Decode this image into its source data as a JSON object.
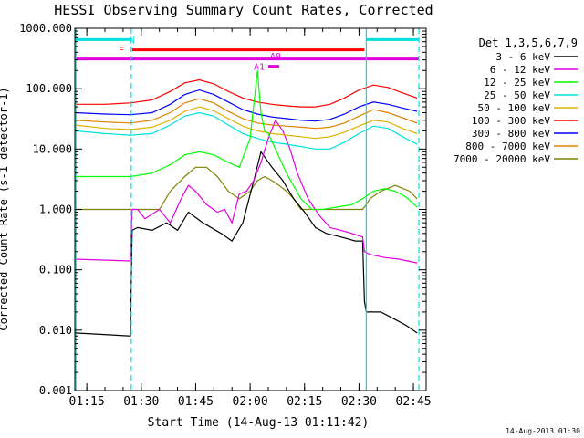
{
  "chart_data": {
    "type": "line",
    "title": "HESSI Observing Summary Count Rates, Corrected",
    "xlabel": "Start Time (14-Aug-13 01:11:42)",
    "ylabel": "Corrected Count Rate (s-1 detector-1)",
    "y_scale": "log",
    "ylim": [
      0.001,
      1000
    ],
    "xlim": [
      "01:11:42",
      "02:48:30"
    ],
    "x_ticks": [
      "01:15",
      "01:30",
      "01:45",
      "02:00",
      "02:15",
      "02:30",
      "02:45"
    ],
    "y_ticks": [
      "0.001",
      "0.010",
      "0.100",
      "1.000",
      "10.000",
      "100.000",
      "1000.000"
    ],
    "legend_title": "Det 1,3,5,6,7,9",
    "legend_position": "right, outside plot",
    "grid": false,
    "series": [
      {
        "name": "3 - 6 keV",
        "color": "#000000",
        "x": [
          "01:11:42",
          "01:27:00",
          "01:27:30",
          "01:29",
          "01:33",
          "01:37",
          "01:40",
          "01:43",
          "01:47",
          "01:52",
          "01:55",
          "01:58",
          "02:01",
          "02:03",
          "02:06",
          "02:09",
          "02:12",
          "02:15",
          "02:18",
          "02:21",
          "02:25",
          "02:29",
          "02:31",
          "02:31:30",
          "02:32",
          "02:36",
          "02:40",
          "02:43",
          "02:46"
        ],
        "y": [
          0.009,
          0.008,
          0.45,
          0.5,
          0.45,
          0.6,
          0.45,
          0.9,
          0.6,
          0.4,
          0.3,
          0.6,
          3.0,
          9.0,
          5.0,
          3.0,
          1.5,
          0.9,
          0.5,
          0.4,
          0.35,
          0.3,
          0.3,
          0.03,
          0.02,
          0.02,
          0.015,
          0.012,
          0.009
        ]
      },
      {
        "name": "6 - 12 keV",
        "color": "#e000e0",
        "x": [
          "01:11:42",
          "01:27:00",
          "01:27:30",
          "01:29",
          "01:31",
          "01:35",
          "01:38",
          "01:41",
          "01:43",
          "01:45",
          "01:48",
          "01:51",
          "01:53",
          "01:55",
          "01:57",
          "01:59",
          "02:01",
          "02:03",
          "02:05",
          "02:07",
          "02:09",
          "02:11",
          "02:13",
          "02:16",
          "02:19",
          "02:22",
          "02:25",
          "02:28",
          "02:31",
          "02:31:30",
          "02:33",
          "02:37",
          "02:41",
          "02:46"
        ],
        "y": [
          0.15,
          0.14,
          1.0,
          1.0,
          0.7,
          1.0,
          0.6,
          1.5,
          2.5,
          2.0,
          1.2,
          0.9,
          1.0,
          0.6,
          1.8,
          2.0,
          3.0,
          6.0,
          15.0,
          30.0,
          20.0,
          10.0,
          4.0,
          1.5,
          0.8,
          0.5,
          0.45,
          0.4,
          0.35,
          0.2,
          0.18,
          0.16,
          0.15,
          0.13
        ]
      },
      {
        "name": "12 - 25 keV",
        "color": "#00ff00",
        "x": [
          "01:11:42",
          "01:20",
          "01:27",
          "01:33",
          "01:38",
          "01:42",
          "01:46",
          "01:50",
          "01:54",
          "01:57",
          "02:00",
          "02:02",
          "02:03",
          "02:04",
          "02:05",
          "02:07",
          "02:10",
          "02:14",
          "02:17",
          "02:20",
          "02:24",
          "02:28",
          "02:31",
          "02:34",
          "02:37",
          "02:40",
          "02:43",
          "02:46"
        ],
        "y": [
          3.5,
          3.5,
          3.5,
          4.0,
          5.5,
          8.0,
          9.0,
          8.0,
          6.0,
          5.0,
          15.0,
          200.0,
          40.0,
          20.0,
          18.0,
          10.0,
          4.0,
          1.5,
          1.0,
          1.0,
          1.1,
          1.2,
          1.5,
          2.0,
          2.2,
          2.0,
          1.6,
          1.1
        ]
      },
      {
        "name": "25 - 50 keV",
        "color": "#00e0e0",
        "x": [
          "01:11:42",
          "01:20",
          "01:27",
          "01:33",
          "01:38",
          "01:42",
          "01:46",
          "01:50",
          "01:54",
          "01:58",
          "02:02",
          "02:06",
          "02:10",
          "02:14",
          "02:18",
          "02:22",
          "02:26",
          "02:30",
          "02:34",
          "02:38",
          "02:42",
          "02:46"
        ],
        "y": [
          20.0,
          18.0,
          17.0,
          18.0,
          25.0,
          35.0,
          40.0,
          35.0,
          25.0,
          18.0,
          15.0,
          13.0,
          12.0,
          11.0,
          10.0,
          10.0,
          13.0,
          18.0,
          24.0,
          22.0,
          16.0,
          12.0
        ]
      },
      {
        "name": "50 - 100 keV",
        "color": "#e0b000",
        "x": [
          "01:11:42",
          "01:20",
          "01:27",
          "01:33",
          "01:38",
          "01:42",
          "01:46",
          "01:50",
          "01:54",
          "01:58",
          "02:02",
          "02:06",
          "02:10",
          "02:14",
          "02:18",
          "02:22",
          "02:26",
          "02:30",
          "02:34",
          "02:38",
          "02:42",
          "02:46"
        ],
        "y": [
          25.0,
          22.0,
          21.0,
          23.0,
          30.0,
          42.0,
          50.0,
          43.0,
          32.0,
          24.0,
          20.0,
          18.0,
          17.0,
          16.0,
          15.0,
          16.0,
          19.0,
          24.0,
          30.0,
          28.0,
          22.0,
          18.0
        ]
      },
      {
        "name": "100 - 300 keV",
        "color": "#ff0000",
        "x": [
          "01:11:42",
          "01:20",
          "01:27",
          "01:33",
          "01:38",
          "01:42",
          "01:46",
          "01:50",
          "01:54",
          "01:58",
          "02:02",
          "02:06",
          "02:10",
          "02:14",
          "02:18",
          "02:22",
          "02:26",
          "02:30",
          "02:34",
          "02:38",
          "02:42",
          "02:46"
        ],
        "y": [
          55.0,
          55.0,
          58.0,
          65.0,
          90.0,
          125.0,
          140.0,
          120.0,
          90.0,
          70.0,
          60.0,
          55.0,
          52.0,
          50.0,
          50.0,
          55.0,
          70.0,
          95.0,
          115.0,
          105.0,
          85.0,
          70.0
        ]
      },
      {
        "name": "300 - 800 keV",
        "color": "#0000ff",
        "x": [
          "01:11:42",
          "01:20",
          "01:27",
          "01:33",
          "01:38",
          "01:42",
          "01:46",
          "01:50",
          "01:54",
          "01:58",
          "02:02",
          "02:06",
          "02:10",
          "02:14",
          "02:18",
          "02:22",
          "02:26",
          "02:30",
          "02:34",
          "02:38",
          "02:42",
          "02:46"
        ],
        "y": [
          40.0,
          38.0,
          37.0,
          40.0,
          55.0,
          80.0,
          95.0,
          80.0,
          60.0,
          45.0,
          38.0,
          34.0,
          32.0,
          30.0,
          29.0,
          31.0,
          38.0,
          50.0,
          60.0,
          55.0,
          48.0,
          42.0
        ]
      },
      {
        "name": "800 - 7000 keV",
        "color": "#e08000",
        "x": [
          "01:11:42",
          "01:20",
          "01:27",
          "01:33",
          "01:38",
          "01:42",
          "01:46",
          "01:50",
          "01:54",
          "01:58",
          "02:02",
          "02:06",
          "02:10",
          "02:14",
          "02:18",
          "02:22",
          "02:26",
          "02:30",
          "02:34",
          "02:38",
          "02:42",
          "02:46"
        ],
        "y": [
          30.0,
          28.0,
          27.0,
          30.0,
          40.0,
          58.0,
          68.0,
          58.0,
          42.0,
          32.0,
          27.0,
          25.0,
          24.0,
          23.0,
          22.0,
          23.0,
          27.0,
          35.0,
          45.0,
          40.0,
          33.0,
          27.0
        ]
      },
      {
        "name": "7000 - 20000 keV",
        "color": "#808000",
        "x": [
          "01:11:42",
          "01:27",
          "01:28",
          "01:35",
          "01:38",
          "01:42",
          "01:45",
          "01:48",
          "01:51",
          "01:54",
          "01:57",
          "02:00",
          "02:02",
          "02:04",
          "02:06",
          "02:08",
          "02:10",
          "02:12",
          "02:14",
          "02:16",
          "02:20",
          "02:25",
          "02:30",
          "02:31",
          "02:32",
          "02:33",
          "02:36",
          "02:40",
          "02:44",
          "02:46"
        ],
        "y": [
          1.0,
          1.0,
          1.0,
          1.0,
          2.0,
          3.5,
          5.0,
          5.0,
          3.5,
          2.0,
          1.5,
          2.0,
          3.0,
          3.5,
          3.0,
          2.5,
          2.0,
          1.5,
          1.0,
          1.0,
          1.0,
          1.0,
          1.0,
          1.0,
          1.2,
          1.5,
          2.0,
          2.5,
          2.0,
          1.5
        ]
      }
    ],
    "annotations": [
      {
        "label": "N",
        "color": "#00e0e0",
        "x_start": "01:11:42",
        "x_end": "01:27:00",
        "y": 650,
        "label_at": "01:27:30"
      },
      {
        "label": "",
        "color": "#00e0e0",
        "x_start": "02:32:00",
        "x_end": "02:46:30",
        "y": 650
      },
      {
        "label": "F",
        "color": "#ff0000",
        "x_start": "01:27:30",
        "x_end": "02:31:30",
        "y": 440,
        "label_at": "01:24:30"
      },
      {
        "label": "",
        "color": "#e000e0",
        "x_start": "01:11:42",
        "x_end": "02:46:30",
        "y": 310
      },
      {
        "label": "A1",
        "color": "#e000e0",
        "x_start": "02:05:00",
        "x_end": "02:08:00",
        "y": 235,
        "label_at": "02:02:30"
      },
      {
        "label": "A0",
        "color": "#e000e0",
        "label_at": "02:07:00",
        "y": 350
      }
    ],
    "vertical_lines": [
      {
        "x": "01:12:00",
        "color": "#00e0e0",
        "style": "solid"
      },
      {
        "x": "01:27:15",
        "color": "#00e0e0",
        "style": "dashed"
      },
      {
        "x": "02:32:00",
        "color": "#00e0e0",
        "style": "solid"
      },
      {
        "x": "02:46:30",
        "color": "#00e0e0",
        "style": "dashed"
      }
    ]
  },
  "footer": {
    "date_stamp": "14-Aug-2013 01:30"
  }
}
